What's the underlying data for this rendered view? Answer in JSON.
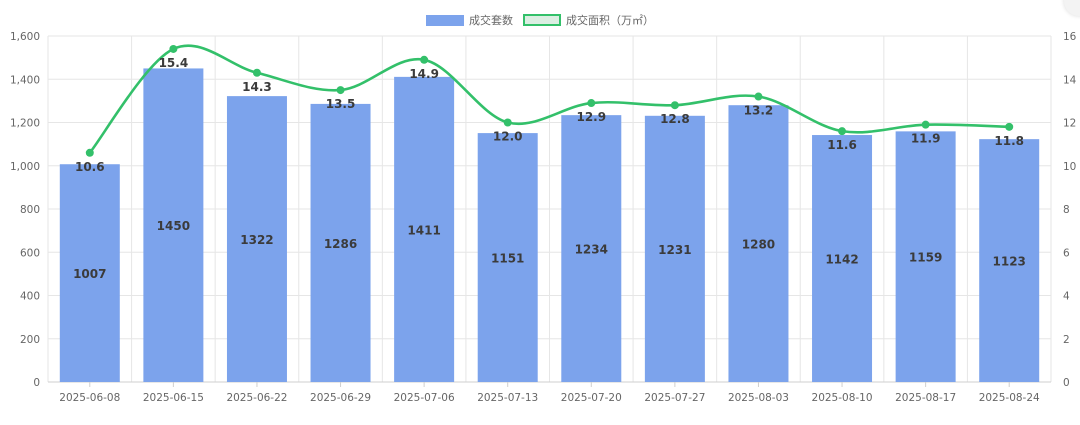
{
  "chart_data": {
    "type": "bar",
    "categories": [
      "2025-06-08",
      "2025-06-15",
      "2025-06-22",
      "2025-06-29",
      "2025-07-06",
      "2025-07-13",
      "2025-07-20",
      "2025-07-27",
      "2025-08-03",
      "2025-08-10",
      "2025-08-17",
      "2025-08-24"
    ],
    "series": [
      {
        "name": "成交套数",
        "type": "bar",
        "axis": "left",
        "color": "#7ca3ec",
        "values": [
          1007,
          1450,
          1322,
          1286,
          1411,
          1151,
          1234,
          1231,
          1280,
          1142,
          1159,
          1123
        ],
        "labels": [
          "1007",
          "1450",
          "1322",
          "1286",
          "1411",
          "1151",
          "1234",
          "1231",
          "1280",
          "1142",
          "1159",
          "1123"
        ]
      },
      {
        "name": "成交面积（万㎡）",
        "type": "line",
        "axis": "right",
        "color": "#33c06a",
        "values": [
          10.6,
          15.4,
          14.3,
          13.5,
          14.9,
          12.0,
          12.9,
          12.8,
          13.2,
          11.6,
          11.9,
          11.8
        ],
        "labels": [
          "10.6",
          "15.4",
          "14.3",
          "13.5",
          "14.9",
          "12.0",
          "12.9",
          "12.8",
          "13.2",
          "11.6",
          "11.9",
          "11.8"
        ]
      }
    ],
    "y_left": {
      "range": [
        0,
        1600
      ],
      "ticks": [
        0,
        200,
        400,
        600,
        800,
        1000,
        1200,
        1400,
        1600
      ],
      "tick_labels": [
        "0",
        "200",
        "400",
        "600",
        "800",
        "1,000",
        "1,200",
        "1,400",
        "1,600"
      ]
    },
    "y_right": {
      "range": [
        0,
        16
      ],
      "ticks": [
        0,
        2,
        4,
        6,
        8,
        10,
        12,
        14,
        16
      ],
      "tick_labels": [
        "0",
        "2",
        "4",
        "6",
        "8",
        "10",
        "12",
        "14",
        "16"
      ]
    },
    "grid": true,
    "legend_position": "top-center"
  }
}
